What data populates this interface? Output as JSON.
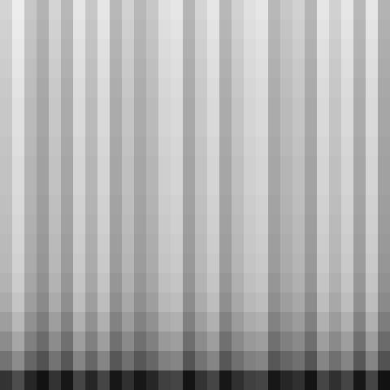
{
  "chart_data": {
    "type": "heatmap",
    "tick_labels": false,
    "color_range": [
      0,
      100
    ],
    "cells": [
      [
        83,
        93,
        78,
        70,
        83,
        72,
        90,
        78,
        90,
        72,
        82,
        72,
        78,
        88,
        90,
        71,
        83,
        90,
        72,
        82,
        88,
        90,
        72,
        78,
        82,
        71,
        90,
        82,
        90,
        72,
        90,
        70
      ],
      [
        82,
        92,
        77,
        69,
        82,
        71,
        89,
        77,
        89,
        71,
        81,
        71,
        77,
        87,
        89,
        70,
        82,
        89,
        71,
        81,
        87,
        89,
        71,
        77,
        81,
        70,
        89,
        81,
        89,
        71,
        89,
        69
      ],
      [
        81,
        91,
        76,
        68,
        81,
        70,
        88,
        76,
        88,
        70,
        80,
        70,
        76,
        86,
        88,
        69,
        81,
        88,
        70,
        80,
        86,
        88,
        70,
        76,
        80,
        69,
        88,
        80,
        88,
        70,
        88,
        68
      ],
      [
        80,
        90,
        75,
        67,
        80,
        69,
        87,
        75,
        87,
        69,
        79,
        69,
        75,
        85,
        87,
        68,
        80,
        87,
        69,
        79,
        85,
        87,
        69,
        75,
        79,
        68,
        87,
        79,
        87,
        69,
        87,
        67
      ],
      [
        79,
        89,
        74,
        66,
        79,
        68,
        86,
        74,
        86,
        68,
        78,
        68,
        74,
        84,
        86,
        67,
        79,
        86,
        68,
        78,
        84,
        86,
        68,
        74,
        78,
        67,
        86,
        78,
        86,
        68,
        86,
        66
      ],
      [
        78,
        88,
        73,
        65,
        78,
        67,
        85,
        73,
        85,
        67,
        77,
        67,
        73,
        83,
        85,
        66,
        78,
        85,
        67,
        77,
        83,
        85,
        67,
        73,
        77,
        66,
        85,
        77,
        85,
        67,
        85,
        65
      ],
      [
        78,
        88,
        73,
        65,
        78,
        67,
        85,
        73,
        85,
        67,
        77,
        67,
        73,
        83,
        85,
        66,
        78,
        85,
        67,
        77,
        83,
        85,
        67,
        73,
        77,
        66,
        85,
        77,
        85,
        67,
        85,
        65
      ],
      [
        77,
        87,
        72,
        64,
        77,
        66,
        84,
        72,
        84,
        66,
        76,
        66,
        72,
        82,
        84,
        65,
        77,
        84,
        66,
        76,
        82,
        84,
        66,
        72,
        76,
        65,
        84,
        76,
        84,
        66,
        84,
        64
      ],
      [
        76,
        86,
        71,
        63,
        76,
        65,
        83,
        71,
        83,
        65,
        75,
        65,
        71,
        81,
        83,
        64,
        76,
        83,
        65,
        75,
        81,
        83,
        65,
        71,
        75,
        64,
        83,
        75,
        83,
        65,
        83,
        63
      ],
      [
        76,
        86,
        71,
        63,
        76,
        65,
        83,
        71,
        83,
        65,
        75,
        65,
        71,
        81,
        83,
        64,
        76,
        83,
        65,
        75,
        81,
        83,
        65,
        71,
        75,
        64,
        83,
        75,
        83,
        65,
        83,
        63
      ],
      [
        75,
        85,
        70,
        62,
        75,
        64,
        82,
        70,
        82,
        64,
        74,
        64,
        70,
        80,
        82,
        63,
        75,
        82,
        64,
        74,
        80,
        82,
        64,
        70,
        74,
        63,
        82,
        74,
        82,
        64,
        82,
        62
      ],
      [
        74,
        84,
        69,
        61,
        74,
        63,
        81,
        69,
        81,
        63,
        73,
        63,
        69,
        79,
        81,
        62,
        74,
        81,
        63,
        73,
        79,
        81,
        63,
        69,
        73,
        62,
        81,
        73,
        81,
        63,
        81,
        61
      ],
      [
        73,
        83,
        68,
        60,
        73,
        62,
        80,
        68,
        80,
        62,
        72,
        62,
        68,
        78,
        80,
        61,
        73,
        80,
        62,
        72,
        78,
        80,
        62,
        68,
        72,
        61,
        80,
        72,
        80,
        62,
        80,
        60
      ],
      [
        72,
        82,
        67,
        59,
        72,
        61,
        79,
        67,
        79,
        61,
        71,
        61,
        67,
        77,
        79,
        60,
        72,
        79,
        61,
        71,
        77,
        79,
        61,
        67,
        71,
        60,
        79,
        71,
        79,
        61,
        79,
        59
      ],
      [
        70,
        80,
        65,
        57,
        70,
        59,
        77,
        65,
        77,
        59,
        69,
        59,
        65,
        75,
        77,
        58,
        70,
        77,
        59,
        69,
        75,
        77,
        59,
        65,
        69,
        58,
        77,
        69,
        77,
        59,
        77,
        57
      ],
      [
        67,
        77,
        62,
        54,
        67,
        56,
        74,
        62,
        74,
        56,
        66,
        56,
        62,
        72,
        74,
        55,
        67,
        74,
        56,
        66,
        72,
        74,
        56,
        62,
        66,
        55,
        74,
        66,
        74,
        56,
        74,
        54
      ],
      [
        62,
        72,
        57,
        49,
        62,
        51,
        69,
        57,
        69,
        51,
        61,
        51,
        57,
        67,
        69,
        50,
        62,
        69,
        51,
        61,
        67,
        69,
        51,
        57,
        61,
        50,
        69,
        61,
        69,
        51,
        69,
        49
      ],
      [
        55,
        65,
        50,
        42,
        55,
        44,
        62,
        50,
        62,
        44,
        54,
        44,
        50,
        60,
        62,
        43,
        55,
        62,
        44,
        54,
        60,
        62,
        44,
        50,
        54,
        43,
        62,
        54,
        62,
        44,
        62,
        42
      ],
      [
        45,
        55,
        40,
        32,
        45,
        34,
        52,
        40,
        52,
        34,
        44,
        34,
        40,
        50,
        52,
        33,
        45,
        52,
        34,
        44,
        50,
        52,
        34,
        40,
        44,
        33,
        52,
        44,
        52,
        34,
        52,
        32
      ],
      [
        20,
        30,
        15,
        7,
        20,
        9,
        27,
        15,
        27,
        9,
        19,
        9,
        15,
        25,
        27,
        8,
        20,
        27,
        9,
        19,
        25,
        27,
        9,
        15,
        19,
        8,
        27,
        19,
        27,
        9,
        27,
        7
      ]
    ]
  }
}
